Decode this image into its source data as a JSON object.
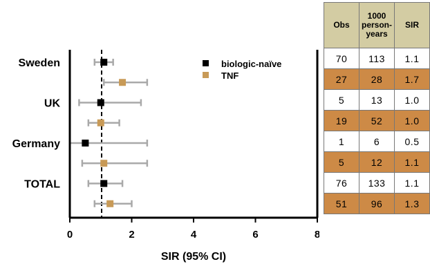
{
  "chart_data": {
    "type": "forest",
    "x_axis": {
      "title": "SIR (95% CI)",
      "range": [
        0,
        8
      ],
      "ticks": [
        0,
        2,
        4,
        6,
        8
      ],
      "reference_line": 1
    },
    "legend": {
      "placement": "top-right",
      "entries": [
        {
          "name": "biologic-naïve",
          "color": "#000000"
        },
        {
          "name": "TNF",
          "color": "#c89a57"
        }
      ]
    },
    "groups": [
      "Sweden",
      "UK",
      "Germany",
      "TOTAL"
    ],
    "rows": [
      {
        "group": "Sweden",
        "series": "biologic-naïve",
        "sir": 1.1,
        "lower": 0.8,
        "upper": 1.4
      },
      {
        "group": "Sweden",
        "series": "TNF",
        "sir": 1.7,
        "lower": 1.1,
        "upper": 2.5
      },
      {
        "group": "UK",
        "series": "biologic-naïve",
        "sir": 1.0,
        "lower": 0.3,
        "upper": 2.3
      },
      {
        "group": "UK",
        "series": "TNF",
        "sir": 1.0,
        "lower": 0.6,
        "upper": 1.6
      },
      {
        "group": "Germany",
        "series": "biologic-naïve",
        "sir": 0.5,
        "lower": 0.0,
        "upper": 2.5
      },
      {
        "group": "Germany",
        "series": "TNF",
        "sir": 1.1,
        "lower": 0.4,
        "upper": 2.5
      },
      {
        "group": "TOTAL",
        "series": "biologic-naïve",
        "sir": 1.1,
        "lower": 0.6,
        "upper": 1.7
      },
      {
        "group": "TOTAL",
        "series": "TNF",
        "sir": 1.3,
        "lower": 0.8,
        "upper": 2.0
      }
    ],
    "colors": {
      "naive": "#000000",
      "tnf": "#c89a57",
      "ci": "#a9a9a9"
    }
  },
  "table": {
    "headers": {
      "obs": "Obs",
      "person_years": "1000 person-years",
      "sir": "SIR"
    },
    "header_lines": [
      "1000",
      "person-",
      "years"
    ],
    "rows": [
      {
        "obs": "70",
        "py": "113",
        "sir": "1.1",
        "series": "biologic-naïve"
      },
      {
        "obs": "27",
        "py": "28",
        "sir": "1.7",
        "series": "TNF"
      },
      {
        "obs": "5",
        "py": "13",
        "sir": "1.0",
        "series": "biologic-naïve"
      },
      {
        "obs": "19",
        "py": "52",
        "sir": "1.0",
        "series": "TNF"
      },
      {
        "obs": "1",
        "py": "6",
        "sir": "0.5",
        "series": "biologic-naïve"
      },
      {
        "obs": "5",
        "py": "12",
        "sir": "1.1",
        "series": "TNF"
      },
      {
        "obs": "76",
        "py": "133",
        "sir": "1.1",
        "series": "biologic-naïve"
      },
      {
        "obs": "51",
        "py": "96",
        "sir": "1.3",
        "series": "TNF"
      }
    ],
    "colors": {
      "header_bg": "#d3cca3",
      "tnf_bg": "#cd8a46",
      "naive_bg": "#ffffff"
    }
  }
}
